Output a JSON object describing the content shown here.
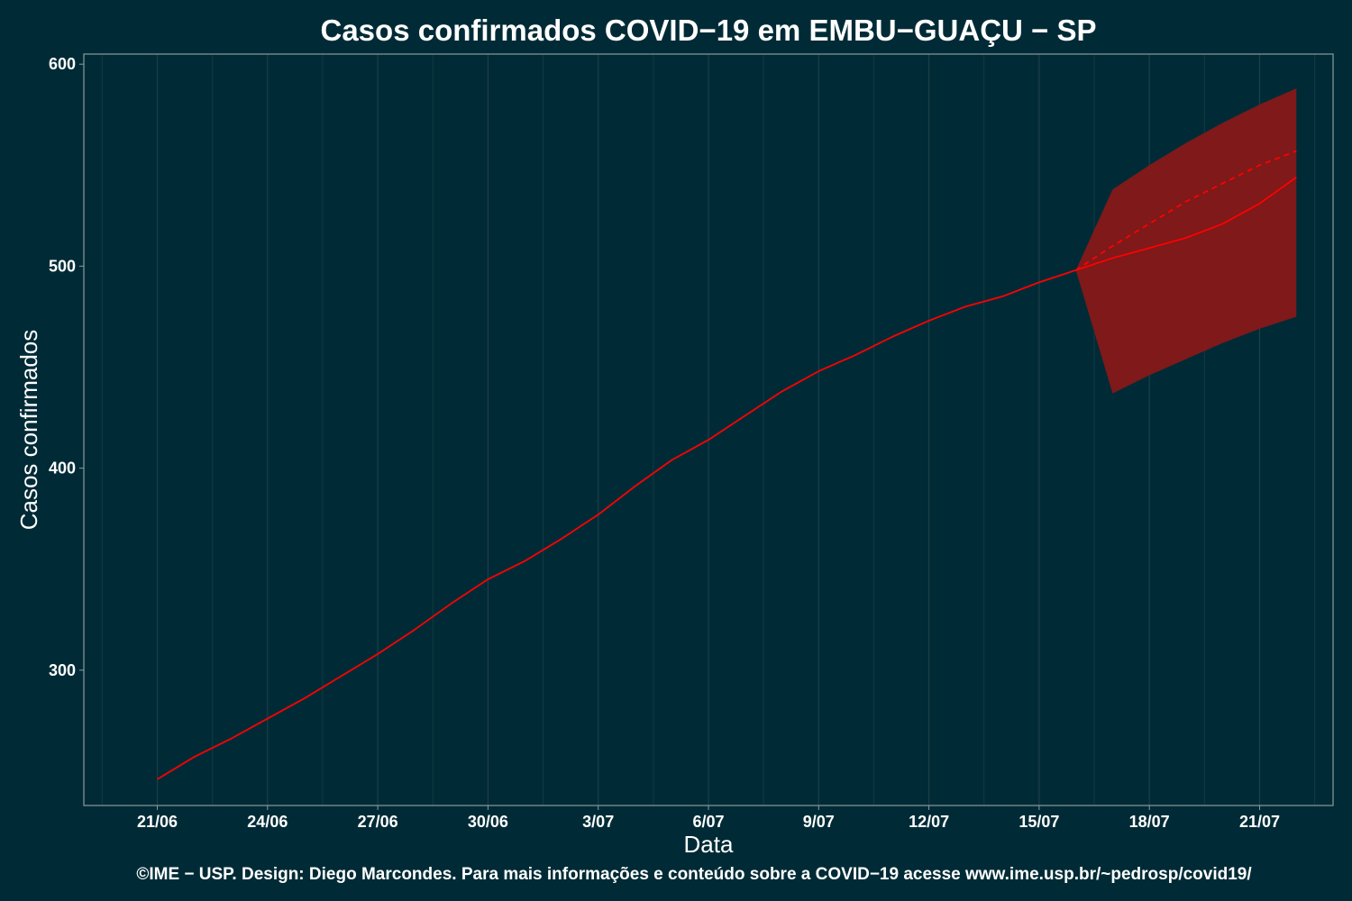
{
  "chart_data": {
    "type": "line",
    "title": "Casos confirmados COVID−19 em EMBU−GUAÇU − SP",
    "xlabel": "Data",
    "ylabel": "Casos confirmados",
    "footer": "©IME − USP. Design: Diego Marcondes. Para mais informações e conteúdo sobre a COVID−19 acesse www.ime.usp.br/~pedrosp/covid19/",
    "x_ticks": [
      {
        "date": "2020-06-21",
        "label": "21/06"
      },
      {
        "date": "2020-06-24",
        "label": "24/06"
      },
      {
        "date": "2020-06-27",
        "label": "27/06"
      },
      {
        "date": "2020-06-30",
        "label": "30/06"
      },
      {
        "date": "2020-07-03",
        "label": "3/07"
      },
      {
        "date": "2020-07-06",
        "label": "6/07"
      },
      {
        "date": "2020-07-09",
        "label": "9/07"
      },
      {
        "date": "2020-07-12",
        "label": "12/07"
      },
      {
        "date": "2020-07-15",
        "label": "15/07"
      },
      {
        "date": "2020-07-18",
        "label": "18/07"
      },
      {
        "date": "2020-07-21",
        "label": "21/07"
      }
    ],
    "y_ticks": [
      300,
      400,
      500,
      600
    ],
    "xlim": [
      "2020-06-19",
      "2020-07-23"
    ],
    "ylim": [
      233,
      605
    ],
    "grid": true,
    "colors": {
      "background": "#002b36",
      "grid": "#1d3f48",
      "axis": "#8a9a9e",
      "line": "#ff0000",
      "band": "#8a1818"
    },
    "series": [
      {
        "style": "solid",
        "x": [
          "2020-06-21",
          "2020-06-22",
          "2020-06-23",
          "2020-06-24",
          "2020-06-25",
          "2020-06-26",
          "2020-06-27",
          "2020-06-28",
          "2020-06-29",
          "2020-06-30",
          "2020-07-01",
          "2020-07-02",
          "2020-07-03",
          "2020-07-04",
          "2020-07-05",
          "2020-07-06",
          "2020-07-07",
          "2020-07-08",
          "2020-07-09",
          "2020-07-10",
          "2020-07-11",
          "2020-07-12",
          "2020-07-13",
          "2020-07-14",
          "2020-07-15",
          "2020-07-16"
        ],
        "y": [
          246,
          257,
          266,
          276,
          286,
          297,
          308,
          320,
          333,
          345,
          354,
          365,
          377,
          391,
          404,
          414,
          426,
          438,
          448,
          456,
          465,
          473,
          480,
          485,
          492,
          498
        ]
      },
      {
        "style": "solid",
        "x": [
          "2020-07-16",
          "2020-07-17",
          "2020-07-18",
          "2020-07-19",
          "2020-07-20",
          "2020-07-21",
          "2020-07-22"
        ],
        "y": [
          498,
          504,
          509,
          514,
          521,
          531,
          544
        ]
      },
      {
        "style": "dashed",
        "x": [
          "2020-07-16",
          "2020-07-17",
          "2020-07-18",
          "2020-07-19",
          "2020-07-20",
          "2020-07-21",
          "2020-07-22"
        ],
        "y": [
          498,
          510,
          521,
          532,
          541,
          550,
          557
        ]
      }
    ],
    "band": {
      "x": [
        "2020-07-16",
        "2020-07-17",
        "2020-07-18",
        "2020-07-19",
        "2020-07-20",
        "2020-07-21",
        "2020-07-22"
      ],
      "lower": [
        498,
        437,
        446,
        454,
        462,
        469,
        475
      ],
      "upper": [
        498,
        538,
        550,
        561,
        571,
        580,
        588
      ]
    }
  }
}
